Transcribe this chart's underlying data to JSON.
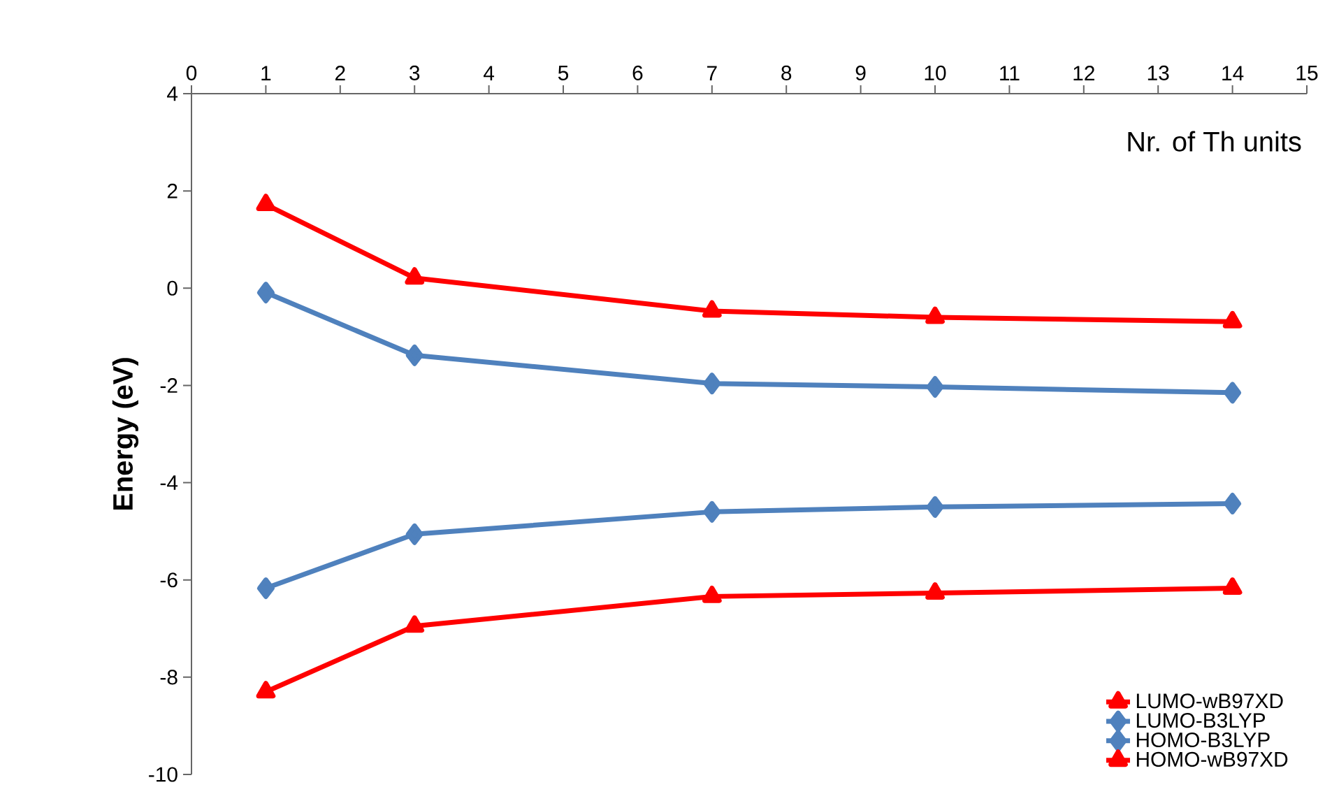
{
  "chart_data": {
    "type": "line",
    "xlabel": "Nr. of Th units",
    "ylabel": "**Energy (eV)**",
    "x": [
      1,
      3,
      7,
      10,
      14
    ],
    "series": [
      {
        "name": "LUMO-wB97XD",
        "color": "#ff0000",
        "marker": "triangle",
        "values": [
          1.72,
          0.21,
          -0.47,
          -0.6,
          -0.69
        ]
      },
      {
        "name": "LUMO-B3LYP",
        "color": "#4f81bd",
        "marker": "diamond",
        "values": [
          -0.09,
          -1.38,
          -1.96,
          -2.03,
          -2.15
        ]
      },
      {
        "name": "HOMO-B3LYP",
        "color": "#4f81bd",
        "marker": "diamond",
        "values": [
          -6.17,
          -5.06,
          -4.6,
          -4.5,
          -4.43
        ]
      },
      {
        "name": "HOMO-wB97XD",
        "color": "#ff0000",
        "marker": "triangle",
        "values": [
          -8.3,
          -6.95,
          -6.34,
          -6.27,
          -6.17
        ]
      }
    ],
    "xlim": [
      0,
      15
    ],
    "xticks": [
      0,
      1,
      2,
      3,
      4,
      5,
      6,
      7,
      8,
      9,
      10,
      11,
      12,
      13,
      14,
      15
    ],
    "ylim": [
      -10,
      4
    ],
    "yticks": [
      -10,
      -8,
      -6,
      -4,
      -2,
      0,
      2,
      4
    ],
    "legend": "bottom right",
    "grid": false,
    "line_style": "solid"
  }
}
